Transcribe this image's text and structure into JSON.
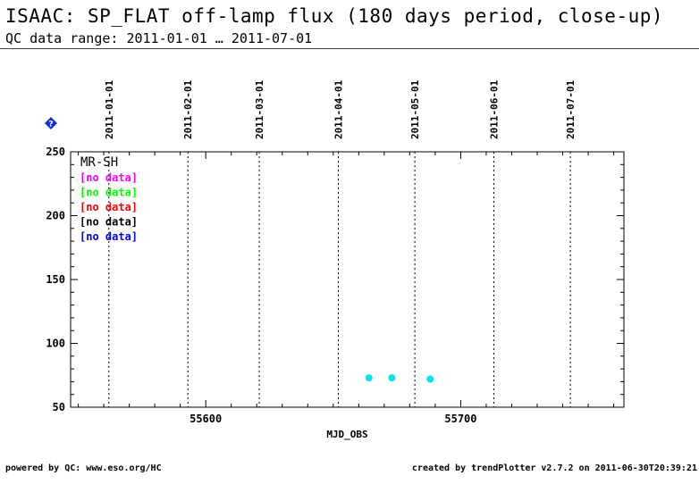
{
  "header": {
    "title": "ISAAC: SP_FLAT off-lamp flux (180 days period, close-up)",
    "subtitle": "QC data range: 2011-01-01 … 2011-07-01"
  },
  "footer": {
    "left": "powered by QC: www.eso.org/HC",
    "right": "created by trendPlotter v2.7.2 on 2011-06-30T20:39:21"
  },
  "icons": {
    "help": "help-diamond-icon"
  },
  "colors": {
    "points": "#00e5ee",
    "axis": "#000000"
  },
  "chart_data": {
    "type": "scatter",
    "xlabel": "MJD_OBS",
    "xlim": [
      55547,
      55764
    ],
    "ylim": [
      50,
      250
    ],
    "xticks": [
      55600,
      55700
    ],
    "yticks": [
      50,
      100,
      150,
      200,
      250
    ],
    "date_markers": [
      {
        "label": "2011-01-01",
        "mjd": 55562
      },
      {
        "label": "2011-02-01",
        "mjd": 55593
      },
      {
        "label": "2011-03-01",
        "mjd": 55621
      },
      {
        "label": "2011-04-01",
        "mjd": 55652
      },
      {
        "label": "2011-05-01",
        "mjd": 55682
      },
      {
        "label": "2011-06-01",
        "mjd": 55713
      },
      {
        "label": "2011-07-01",
        "mjd": 55743
      }
    ],
    "legend_title": "MR-SH",
    "legend": [
      {
        "label": "[no data]",
        "color": "#ff00ff"
      },
      {
        "label": "[no data]",
        "color": "#00ff00"
      },
      {
        "label": "[no data]",
        "color": "#ff0000"
      },
      {
        "label": "[no data]",
        "color": "#000000"
      },
      {
        "label": "[no data]",
        "color": "#0000ff"
      }
    ],
    "series": [
      {
        "color": "#00e5ee",
        "x": [
          55664,
          55673,
          55688
        ],
        "y": [
          73,
          73,
          72
        ]
      }
    ]
  }
}
